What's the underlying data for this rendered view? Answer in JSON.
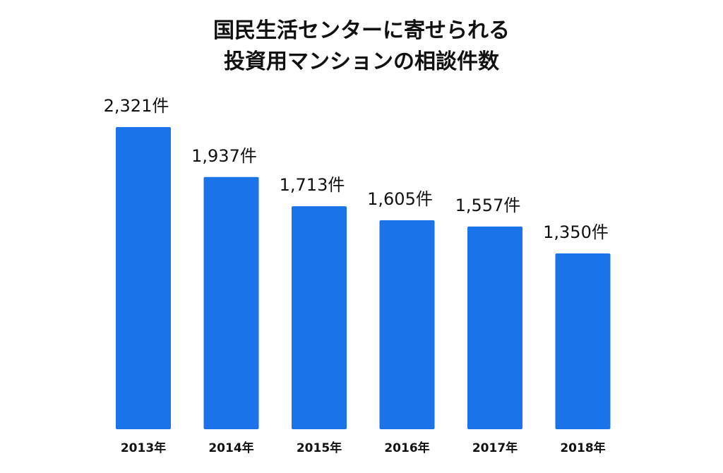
{
  "chart_data": {
    "type": "bar",
    "title_lines": [
      "国民生活センターに寄せられる",
      "投資用マンションの相談件数"
    ],
    "categories": [
      "2013年",
      "2014年",
      "2015年",
      "2016年",
      "2017年",
      "2018年"
    ],
    "values": [
      2321,
      1937,
      1713,
      1605,
      1557,
      1350
    ],
    "value_labels": [
      "2,321件",
      "1,937件",
      "1,713件",
      "1,605件",
      "1,557件",
      "1,350件"
    ],
    "unit": "件",
    "xlabel": "",
    "ylabel": "",
    "ylim": [
      0,
      2321
    ],
    "grid": false,
    "legend": "none",
    "bar_color": "#1a73e8"
  }
}
